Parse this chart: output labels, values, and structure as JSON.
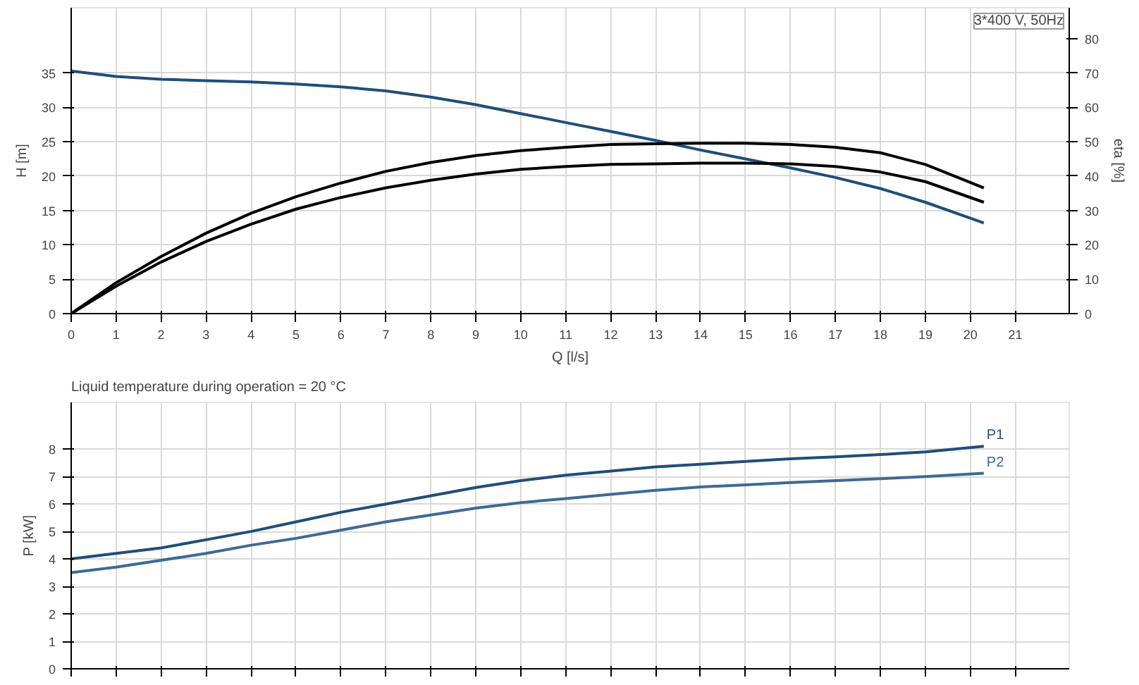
{
  "chart_data": [
    {
      "type": "line",
      "ylabel": "H [m]",
      "y2label": "eta [%]",
      "xlabel": "Q [l/s]",
      "annotations": [
        "3*400 V, 50Hz"
      ],
      "x": [
        0,
        1,
        2,
        3,
        4,
        5,
        6,
        7,
        8,
        9,
        10,
        11,
        12,
        13,
        14,
        15,
        16,
        17,
        18,
        19,
        20.3
      ],
      "xlim": [
        0,
        22.2
      ],
      "xticks": [
        0,
        1,
        2,
        3,
        4,
        5,
        6,
        7,
        8,
        9,
        10,
        11,
        12,
        13,
        14,
        15,
        16,
        17,
        18,
        19,
        20,
        21
      ],
      "ylim": [
        0,
        44.5
      ],
      "yticks": [
        0,
        5,
        10,
        15,
        20,
        25,
        30,
        35
      ],
      "y2lim": [
        0,
        89
      ],
      "y2ticks": [
        0,
        10,
        20,
        30,
        40,
        50,
        60,
        70,
        80
      ],
      "grid": true,
      "series": [
        {
          "color": "#1f4e79",
          "values": [
            35.3,
            34.5,
            34.1,
            33.9,
            33.7,
            33.4,
            33.0,
            32.4,
            31.5,
            30.4,
            29.1,
            27.8,
            26.5,
            25.2,
            23.8,
            22.5,
            21.2,
            19.8,
            18.2,
            16.2,
            13.2
          ]
        },
        {
          "color": "#000000",
          "axis": "y2",
          "values": [
            0,
            9,
            16.6,
            23.4,
            29.2,
            34,
            38,
            41.4,
            44,
            46,
            47.4,
            48.4,
            49.2,
            49.4,
            49.6,
            49.6,
            49.2,
            48.4,
            46.8,
            43.4,
            36.6
          ]
        },
        {
          "color": "#000000",
          "axis": "y2",
          "values": [
            0,
            8,
            15,
            21,
            26,
            30.4,
            33.8,
            36.6,
            38.8,
            40.6,
            42,
            42.8,
            43.4,
            43.6,
            43.8,
            43.8,
            43.6,
            42.8,
            41.2,
            38.4,
            32.4
          ]
        }
      ]
    },
    {
      "type": "line",
      "title": "Liquid temperature during operation = 20 °C",
      "ylabel": "P [kW]",
      "x": [
        0,
        1,
        2,
        3,
        4,
        5,
        6,
        7,
        8,
        9,
        10,
        11,
        12,
        13,
        14,
        15,
        16,
        17,
        18,
        19,
        20.3
      ],
      "xlim": [
        0,
        22.2
      ],
      "xticks": [
        0,
        1,
        2,
        3,
        4,
        5,
        6,
        7,
        8,
        9,
        10,
        11,
        12,
        13,
        14,
        15,
        16,
        17,
        18,
        19,
        20,
        21
      ],
      "ylim": [
        0,
        9.7
      ],
      "yticks": [
        0,
        1,
        2,
        3,
        4,
        5,
        6,
        7,
        8
      ],
      "tick_labels": "y",
      "grid": true,
      "series": [
        {
          "name": "P1",
          "color": "#1f4e79",
          "values": [
            4.0,
            4.2,
            4.4,
            4.7,
            5.0,
            5.35,
            5.7,
            6.0,
            6.3,
            6.6,
            6.85,
            7.05,
            7.2,
            7.35,
            7.45,
            7.55,
            7.65,
            7.72,
            7.8,
            7.9,
            8.1
          ]
        },
        {
          "name": "P2",
          "color": "#3d6a94",
          "values": [
            3.5,
            3.7,
            3.95,
            4.2,
            4.5,
            4.75,
            5.05,
            5.35,
            5.6,
            5.85,
            6.05,
            6.2,
            6.35,
            6.5,
            6.62,
            6.7,
            6.78,
            6.85,
            6.92,
            7.0,
            7.12
          ]
        }
      ]
    }
  ]
}
